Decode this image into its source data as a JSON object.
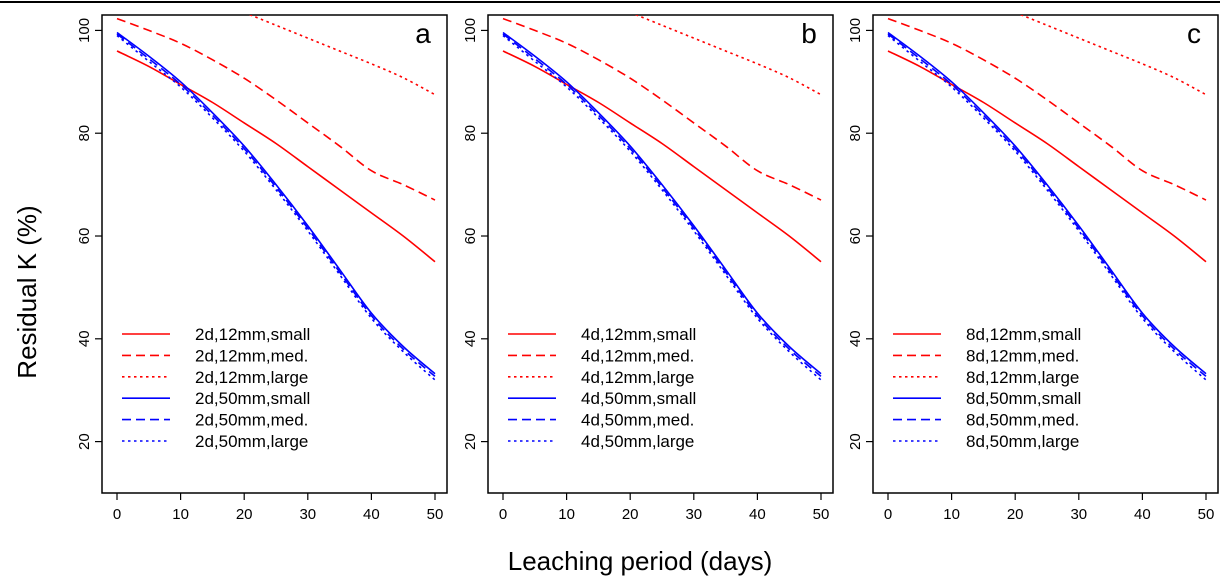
{
  "figure": {
    "ylabel": "Residual K  (%)",
    "xlabel": "Leaching period (days)"
  },
  "chart_data": [
    {
      "type": "line",
      "panel_label": "a",
      "x": [
        0,
        5,
        10,
        15,
        20,
        25,
        30,
        35,
        40,
        45,
        50
      ],
      "xlim": [
        0,
        50
      ],
      "ylim": [
        10,
        103
      ],
      "xticks": [
        0,
        10,
        20,
        30,
        40,
        50
      ],
      "yticks": [
        20,
        40,
        60,
        80,
        100
      ],
      "legend_position": "bottom-left",
      "series": [
        {
          "name": "2d,12mm,small",
          "color": "#ff0000",
          "dash": "solid",
          "values": [
            96,
            93,
            89.5,
            86,
            82,
            78,
            73.5,
            69,
            64.5,
            60,
            55
          ]
        },
        {
          "name": "2d,12mm,med.",
          "color": "#ff0000",
          "dash": "dashed",
          "values": [
            102.3,
            100,
            97.5,
            94.3,
            90.7,
            86.5,
            82,
            77.5,
            72.7,
            70,
            67
          ]
        },
        {
          "name": "2d,12mm,large",
          "color": "#ff0000",
          "dash": "dotted",
          "values": [
            null,
            null,
            null,
            null,
            103.5,
            101,
            98.5,
            96,
            93.5,
            90.8,
            87.5
          ]
        },
        {
          "name": "2d,50mm,small",
          "color": "#0000ff",
          "dash": "solid",
          "values": [
            99.6,
            95,
            90,
            84,
            77.5,
            70,
            62,
            53.5,
            45,
            38.5,
            33.2
          ]
        },
        {
          "name": "2d,50mm,med.",
          "color": "#0000ff",
          "dash": "dashed",
          "values": [
            99.3,
            94.5,
            89.5,
            83.5,
            77,
            69.5,
            61.5,
            53,
            44.5,
            38,
            32.7
          ]
        },
        {
          "name": "2d,50mm,large",
          "color": "#0000ff",
          "dash": "dotted",
          "values": [
            99,
            94,
            89,
            83,
            76.5,
            69,
            61,
            52.5,
            44,
            37.5,
            32
          ]
        }
      ]
    },
    {
      "type": "line",
      "panel_label": "b",
      "x": [
        0,
        5,
        10,
        15,
        20,
        25,
        30,
        35,
        40,
        45,
        50
      ],
      "xlim": [
        0,
        50
      ],
      "ylim": [
        10,
        103
      ],
      "xticks": [
        0,
        10,
        20,
        30,
        40,
        50
      ],
      "yticks": [
        20,
        40,
        60,
        80,
        100
      ],
      "legend_position": "bottom-left",
      "series": [
        {
          "name": "4d,12mm,small",
          "color": "#ff0000",
          "dash": "solid",
          "values": [
            96,
            93,
            89.5,
            86,
            82,
            78,
            73.5,
            69,
            64.5,
            60,
            55
          ]
        },
        {
          "name": "4d,12mm,med.",
          "color": "#ff0000",
          "dash": "dashed",
          "values": [
            102.3,
            100,
            97.5,
            94.3,
            90.7,
            86.5,
            82,
            77.5,
            72.7,
            70,
            67
          ]
        },
        {
          "name": "4d,12mm,large",
          "color": "#ff0000",
          "dash": "dotted",
          "values": [
            null,
            null,
            null,
            null,
            103.5,
            101,
            98.5,
            96,
            93.5,
            90.8,
            87.5
          ]
        },
        {
          "name": "4d,50mm,small",
          "color": "#0000ff",
          "dash": "solid",
          "values": [
            99.6,
            95,
            90,
            84,
            77.5,
            70,
            62,
            53.5,
            45,
            38.5,
            33.2
          ]
        },
        {
          "name": "4d,50mm,med.",
          "color": "#0000ff",
          "dash": "dashed",
          "values": [
            99.3,
            94.5,
            89.5,
            83.5,
            77,
            69.5,
            61.5,
            53,
            44.5,
            38,
            32.7
          ]
        },
        {
          "name": "4d,50mm,large",
          "color": "#0000ff",
          "dash": "dotted",
          "values": [
            99,
            94,
            89,
            83,
            76.5,
            69,
            61,
            52.5,
            44,
            37.5,
            32
          ]
        }
      ]
    },
    {
      "type": "line",
      "panel_label": "c",
      "x": [
        0,
        5,
        10,
        15,
        20,
        25,
        30,
        35,
        40,
        45,
        50
      ],
      "xlim": [
        0,
        50
      ],
      "ylim": [
        10,
        103
      ],
      "xticks": [
        0,
        10,
        20,
        30,
        40,
        50
      ],
      "yticks": [
        20,
        40,
        60,
        80,
        100
      ],
      "legend_position": "bottom-left",
      "series": [
        {
          "name": "8d,12mm,small",
          "color": "#ff0000",
          "dash": "solid",
          "values": [
            96,
            93,
            89.5,
            86,
            82,
            78,
            73.5,
            69,
            64.5,
            60,
            55
          ]
        },
        {
          "name": "8d,12mm,med.",
          "color": "#ff0000",
          "dash": "dashed",
          "values": [
            102.3,
            100,
            97.5,
            94.3,
            90.7,
            86.5,
            82,
            77.5,
            72.7,
            70,
            67
          ]
        },
        {
          "name": "8d,12mm,large",
          "color": "#ff0000",
          "dash": "dotted",
          "values": [
            null,
            null,
            null,
            null,
            103.5,
            101,
            98.5,
            96,
            93.5,
            90.8,
            87.5
          ]
        },
        {
          "name": "8d,50mm,small",
          "color": "#0000ff",
          "dash": "solid",
          "values": [
            99.6,
            95,
            90,
            84,
            77.5,
            70,
            62,
            53.5,
            45,
            38.5,
            33.2
          ]
        },
        {
          "name": "8d,50mm,med.",
          "color": "#0000ff",
          "dash": "dashed",
          "values": [
            99.3,
            94.5,
            89.5,
            83.5,
            77,
            69.5,
            61.5,
            53,
            44.5,
            38,
            32.7
          ]
        },
        {
          "name": "8d,50mm,large",
          "color": "#0000ff",
          "dash": "dotted",
          "values": [
            99,
            94,
            89,
            83,
            76.5,
            69,
            61,
            52.5,
            44,
            37.5,
            32
          ]
        }
      ]
    }
  ]
}
